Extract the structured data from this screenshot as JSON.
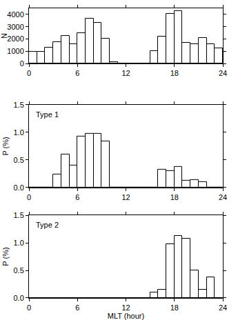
{
  "chart_data": [
    {
      "type": "histogram",
      "ylabel": "N",
      "bins": [
        0,
        1,
        2,
        3,
        4,
        5,
        6,
        7,
        8,
        9,
        10,
        11,
        12,
        13,
        14,
        15,
        16,
        17,
        18,
        19,
        20,
        21,
        22,
        23,
        24
      ],
      "values": [
        950,
        950,
        1300,
        1750,
        2250,
        1550,
        2450,
        3650,
        3300,
        2050,
        100,
        0,
        0,
        0,
        0,
        1000,
        2200,
        4050,
        4250,
        1700,
        1600,
        2100,
        1600,
        1250
      ],
      "color": "#ffffff",
      "xlim": [
        0,
        24
      ],
      "xticks": [
        0,
        6,
        12,
        18,
        24
      ],
      "ylim": [
        0,
        4500
      ],
      "yticks": [
        0,
        1000,
        2000,
        3000,
        4000
      ]
    },
    {
      "type": "histogram",
      "ylabel": "P (%)",
      "annotation": "Type 1",
      "bins": [
        0,
        1,
        2,
        3,
        4,
        5,
        6,
        7,
        8,
        9,
        10,
        11,
        12,
        13,
        14,
        15,
        16,
        17,
        18,
        19,
        20,
        21,
        22,
        23,
        24
      ],
      "values": [
        0,
        0,
        0,
        0.24,
        0.6,
        0.4,
        0.92,
        0.97,
        0.97,
        0.84,
        0,
        0,
        0,
        0,
        0,
        0,
        0.33,
        0.3,
        0.38,
        0.13,
        0.14,
        0.1,
        0,
        0
      ],
      "color": "#ffffff",
      "xlim": [
        0,
        24
      ],
      "xticks": [
        0,
        6,
        12,
        18,
        24
      ],
      "ylim": [
        0,
        1.5
      ],
      "yticks": [
        {
          "value": 0,
          "label": "0.0"
        },
        {
          "value": 0.5,
          "label": "0.5"
        },
        {
          "value": 1,
          "label": "1.0"
        },
        {
          "value": 1.5,
          "label": "1.5"
        }
      ]
    },
    {
      "type": "histogram",
      "ylabel": "P (%)",
      "xlabel": "MLT (hour)",
      "annotation": "Type 2",
      "bins": [
        0,
        1,
        2,
        3,
        4,
        5,
        6,
        7,
        8,
        9,
        10,
        11,
        12,
        13,
        14,
        15,
        16,
        17,
        18,
        19,
        20,
        21,
        22,
        23,
        24
      ],
      "values": [
        0,
        0,
        0,
        0,
        0,
        0,
        0,
        0,
        0,
        0,
        0,
        0,
        0,
        0,
        0,
        0.1,
        0.15,
        0.98,
        1.13,
        1.08,
        0.5,
        0.15,
        0.38,
        0
      ],
      "color": "#ffffff",
      "xlim": [
        0,
        24
      ],
      "xticks": [
        0,
        6,
        12,
        18,
        24
      ],
      "ylim": [
        0,
        1.5
      ],
      "yticks": [
        {
          "value": 0,
          "label": "0.0"
        },
        {
          "value": 0.5,
          "label": "0.5"
        },
        {
          "value": 1,
          "label": "1.0"
        },
        {
          "value": 1.5,
          "label": "1.5"
        }
      ]
    }
  ]
}
